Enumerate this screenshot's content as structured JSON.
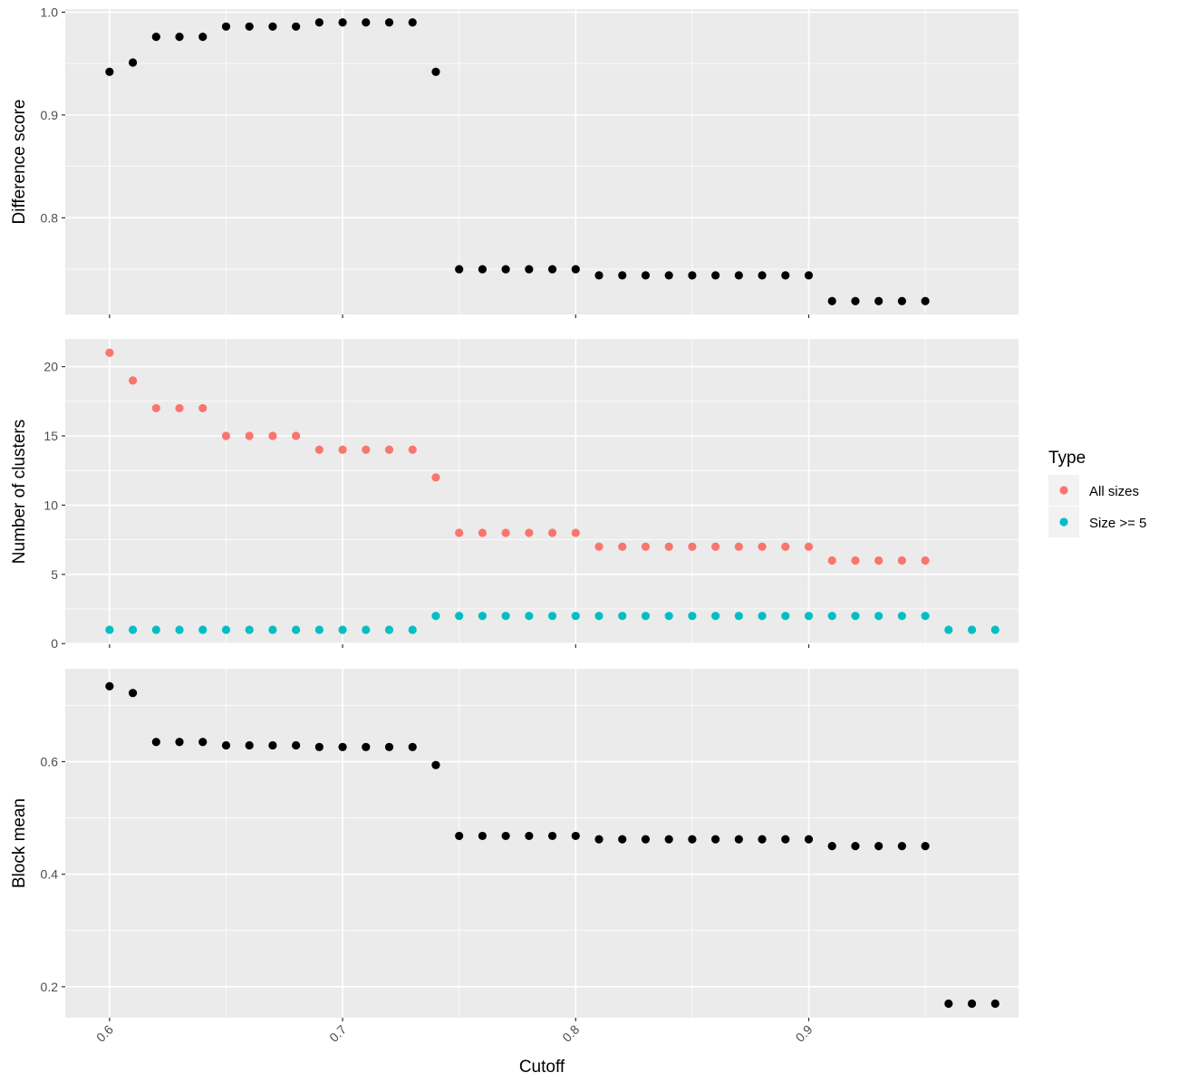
{
  "chart_data": {
    "type": "scatter",
    "xlabel": "Cutoff",
    "xlim": [
      0.581,
      0.99
    ],
    "xticks": [
      0.6,
      0.7,
      0.8,
      0.9
    ],
    "xtick_labels": [
      "0.6",
      "0.7",
      "0.8",
      "0.9"
    ],
    "legend": {
      "title": "Type",
      "position": "right",
      "entries": [
        {
          "name": "All sizes",
          "color": "#F8766D"
        },
        {
          "name": "Size >= 5",
          "color": "#00BFC4"
        }
      ]
    },
    "panels": [
      {
        "ylabel": "Difference score",
        "ylim": [
          0.706,
          1.003
        ],
        "yticks": [
          0.8,
          0.9,
          1.0
        ],
        "ytick_labels": [
          "0.8",
          "0.9",
          "1.0"
        ],
        "series": [
          {
            "color": "#000000",
            "x": [
              0.6,
              0.61,
              0.62,
              0.63,
              0.64,
              0.65,
              0.66,
              0.67,
              0.68,
              0.69,
              0.7,
              0.71,
              0.72,
              0.73,
              0.74,
              0.75,
              0.76,
              0.77,
              0.78,
              0.79,
              0.8,
              0.81,
              0.82,
              0.83,
              0.84,
              0.85,
              0.86,
              0.87,
              0.88,
              0.89,
              0.9,
              0.91,
              0.92,
              0.93,
              0.94,
              0.95
            ],
            "y": [
              0.942,
              0.951,
              0.976,
              0.976,
              0.976,
              0.986,
              0.986,
              0.986,
              0.986,
              0.99,
              0.99,
              0.99,
              0.99,
              0.99,
              0.942,
              0.75,
              0.75,
              0.75,
              0.75,
              0.75,
              0.75,
              0.744,
              0.744,
              0.744,
              0.744,
              0.744,
              0.744,
              0.744,
              0.744,
              0.744,
              0.744,
              0.719,
              0.719,
              0.719,
              0.719,
              0.719
            ]
          }
        ]
      },
      {
        "ylabel": "Number of clusters",
        "ylim": [
          -0.05,
          22.0
        ],
        "yticks": [
          0,
          5,
          10,
          15,
          20
        ],
        "ytick_labels": [
          "0",
          "5",
          "10",
          "15",
          "20"
        ],
        "series": [
          {
            "name": "All sizes",
            "color": "#F8766D",
            "x": [
              0.6,
              0.61,
              0.62,
              0.63,
              0.64,
              0.65,
              0.66,
              0.67,
              0.68,
              0.69,
              0.7,
              0.71,
              0.72,
              0.73,
              0.74,
              0.75,
              0.76,
              0.77,
              0.78,
              0.79,
              0.8,
              0.81,
              0.82,
              0.83,
              0.84,
              0.85,
              0.86,
              0.87,
              0.88,
              0.89,
              0.9,
              0.91,
              0.92,
              0.93,
              0.94,
              0.95
            ],
            "y": [
              21,
              19,
              17,
              17,
              17,
              15,
              15,
              15,
              15,
              14,
              14,
              14,
              14,
              14,
              12,
              8,
              8,
              8,
              8,
              8,
              8,
              7,
              7,
              7,
              7,
              7,
              7,
              7,
              7,
              7,
              7,
              6,
              6,
              6,
              6,
              6
            ]
          },
          {
            "name": "Size >= 5",
            "color": "#00BFC4",
            "x": [
              0.6,
              0.61,
              0.62,
              0.63,
              0.64,
              0.65,
              0.66,
              0.67,
              0.68,
              0.69,
              0.7,
              0.71,
              0.72,
              0.73,
              0.74,
              0.75,
              0.76,
              0.77,
              0.78,
              0.79,
              0.8,
              0.81,
              0.82,
              0.83,
              0.84,
              0.85,
              0.86,
              0.87,
              0.88,
              0.89,
              0.9,
              0.91,
              0.92,
              0.93,
              0.94,
              0.95,
              0.96,
              0.97,
              0.98
            ],
            "y": [
              1,
              1,
              1,
              1,
              1,
              1,
              1,
              1,
              1,
              1,
              1,
              1,
              1,
              1,
              2,
              2,
              2,
              2,
              2,
              2,
              2,
              2,
              2,
              2,
              2,
              2,
              2,
              2,
              2,
              2,
              2,
              2,
              2,
              2,
              2,
              2,
              1,
              1,
              1
            ]
          }
        ]
      },
      {
        "ylabel": "Block mean",
        "ylim": [
          0.145,
          0.765
        ],
        "yticks": [
          0.2,
          0.4,
          0.6
        ],
        "ytick_labels": [
          "0.2",
          "0.4",
          "0.6"
        ],
        "series": [
          {
            "color": "#000000",
            "x": [
              0.6,
              0.61,
              0.62,
              0.63,
              0.64,
              0.65,
              0.66,
              0.67,
              0.68,
              0.69,
              0.7,
              0.71,
              0.72,
              0.73,
              0.74,
              0.75,
              0.76,
              0.77,
              0.78,
              0.79,
              0.8,
              0.81,
              0.82,
              0.83,
              0.84,
              0.85,
              0.86,
              0.87,
              0.88,
              0.89,
              0.9,
              0.91,
              0.92,
              0.93,
              0.94,
              0.95,
              0.96,
              0.97,
              0.98
            ],
            "y": [
              0.734,
              0.722,
              0.635,
              0.635,
              0.635,
              0.629,
              0.629,
              0.629,
              0.629,
              0.626,
              0.626,
              0.626,
              0.626,
              0.626,
              0.594,
              0.468,
              0.468,
              0.468,
              0.468,
              0.468,
              0.468,
              0.462,
              0.462,
              0.462,
              0.462,
              0.462,
              0.462,
              0.462,
              0.462,
              0.462,
              0.462,
              0.45,
              0.45,
              0.45,
              0.45,
              0.45,
              0.17,
              0.17,
              0.17
            ]
          }
        ]
      }
    ]
  }
}
